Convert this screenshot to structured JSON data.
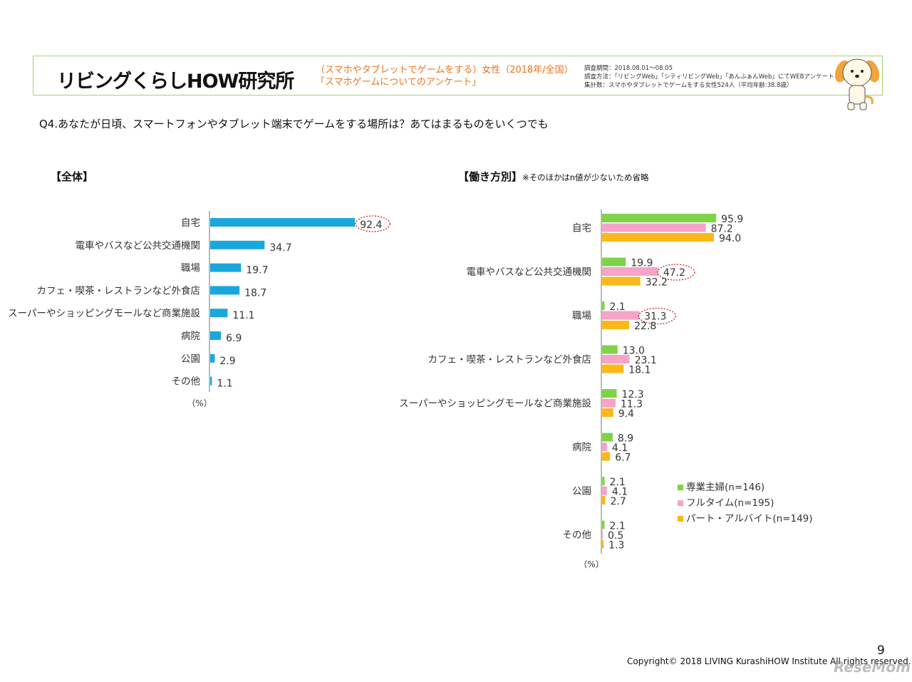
{
  "header": {
    "logo_text": "リビングくらしHOW研究所",
    "survey_title_line1": "（スマホやタブレットでゲームをする）女性（2018年/全国）",
    "survey_title_line2": "「スマホゲームについてのアンケート」",
    "survey_info": [
      "調査期間：2018.08.01～08.05",
      "調査方法：「リビングWeb」「シティリビングWeb」「あんふぁんWeb」にてWEBアンケート",
      "集計数：スマホやタブレットでゲームをする女性524人（平均年齢:38.8歳）"
    ]
  },
  "question": "Q4.あなたが日頃、スマートフォンやタブレット端末でゲームをする場所は？あてはまるものをいくつでも",
  "sections": {
    "left_title": "【全体】",
    "right_title": "【働き方別】",
    "right_note": "※そのほかはn値が少ないため省略"
  },
  "colors": {
    "overall": "#1aa8dc",
    "housewife": "#7ed348",
    "fulltime": "#f6a3c8",
    "parttime": "#fbb81a",
    "highlight": "#d62020"
  },
  "chart_data": [
    {
      "type": "bar",
      "orientation": "horizontal",
      "categories": [
        "自宅",
        "電車やバスなど公共交通機関",
        "職場",
        "カフェ・喫茶・レストランなど外食店",
        "スーパーやショッピングモールなど商業施設",
        "病院",
        "公園",
        "その他"
      ],
      "values": [
        92.4,
        34.7,
        19.7,
        18.7,
        11.1,
        6.9,
        2.9,
        1.1
      ],
      "value_labels": [
        "92.4",
        "34.7",
        "19.7",
        "18.7",
        "11.1",
        "6.9",
        "2.9",
        "1.1"
      ],
      "unit": "（%）",
      "xlim": [
        0,
        100
      ],
      "grid": false,
      "highlighted": [
        0
      ]
    },
    {
      "type": "bar",
      "orientation": "horizontal",
      "categories": [
        "自宅",
        "電車やバスなど公共交通機関",
        "職場",
        "カフェ・喫茶・レストランなど外食店",
        "スーパーやショッピングモールなど商業施設",
        "病院",
        "公園",
        "その他"
      ],
      "series": [
        {
          "name": "専業主婦(n=146)",
          "values": [
            95.9,
            19.9,
            2.1,
            13.0,
            12.3,
            8.9,
            2.1,
            2.1
          ],
          "labels": [
            "95.9",
            "19.9",
            "2.1",
            "13.0",
            "12.3",
            "8.9",
            "2.1",
            "2.1"
          ]
        },
        {
          "name": "フルタイム(n=195)",
          "values": [
            87.2,
            47.2,
            31.3,
            23.1,
            11.3,
            4.1,
            4.1,
            0.5
          ],
          "labels": [
            "87.2",
            "47.2",
            "31.3",
            "23.1",
            "11.3",
            "4.1",
            "4.1",
            "0.5"
          ]
        },
        {
          "name": "パート・アルバイト(n=149)",
          "values": [
            94.0,
            32.2,
            22.8,
            18.1,
            9.4,
            6.7,
            2.7,
            1.3
          ],
          "labels": [
            "94.0",
            "32.2",
            "22.8",
            "18.1",
            "9.4",
            "6.7",
            "2.7",
            "1.3"
          ]
        }
      ],
      "unit": "（%）",
      "xlim": [
        0,
        100
      ],
      "grid": false,
      "legend": "bottom-right",
      "highlighted": [
        {
          "series": 1,
          "category": 1
        },
        {
          "series": 1,
          "category": 2
        }
      ]
    }
  ],
  "footer": {
    "page_number": "9",
    "copyright": "Copyright© 2018 LIVING KurashiHOW Institute All rights reserved.",
    "watermark": "ReseMom"
  }
}
